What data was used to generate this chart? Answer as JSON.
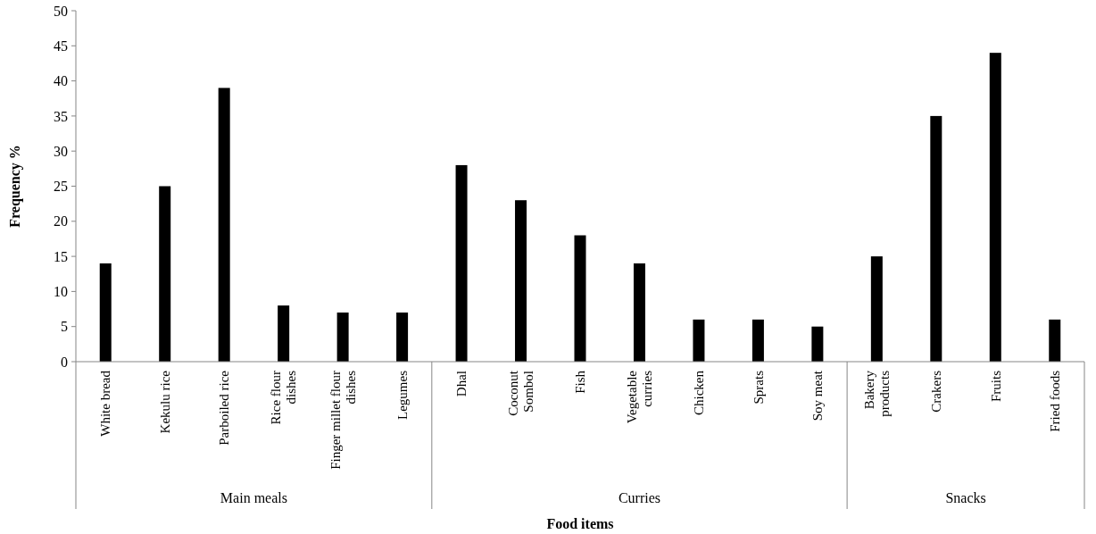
{
  "chart_data": {
    "type": "bar",
    "xlabel": "Food items",
    "ylabel": "Frequency %",
    "categories": [
      "White bread",
      "Kekulu rice",
      "Parboiled rice",
      "Rice flour dishes",
      "Finger millet flour dishes",
      "Legumes",
      "Dhal",
      "Coconut Sombol",
      "Fish",
      "Vegetable curries",
      "Chicken",
      "Sprats",
      "Soy meat",
      "Bakery products",
      "Crakers",
      "Fruits",
      "Fried foods"
    ],
    "values": [
      14,
      25,
      39,
      8,
      7,
      7,
      28,
      23,
      18,
      14,
      6,
      6,
      5,
      15,
      35,
      44,
      6
    ],
    "color": "#000000",
    "ylim": [
      0,
      50
    ],
    "yticks": [
      0,
      5,
      10,
      15,
      20,
      25,
      30,
      35,
      40,
      45,
      50
    ],
    "grid": false,
    "annotations": [
      "Main meals",
      "Curries",
      "Snacks"
    ]
  }
}
